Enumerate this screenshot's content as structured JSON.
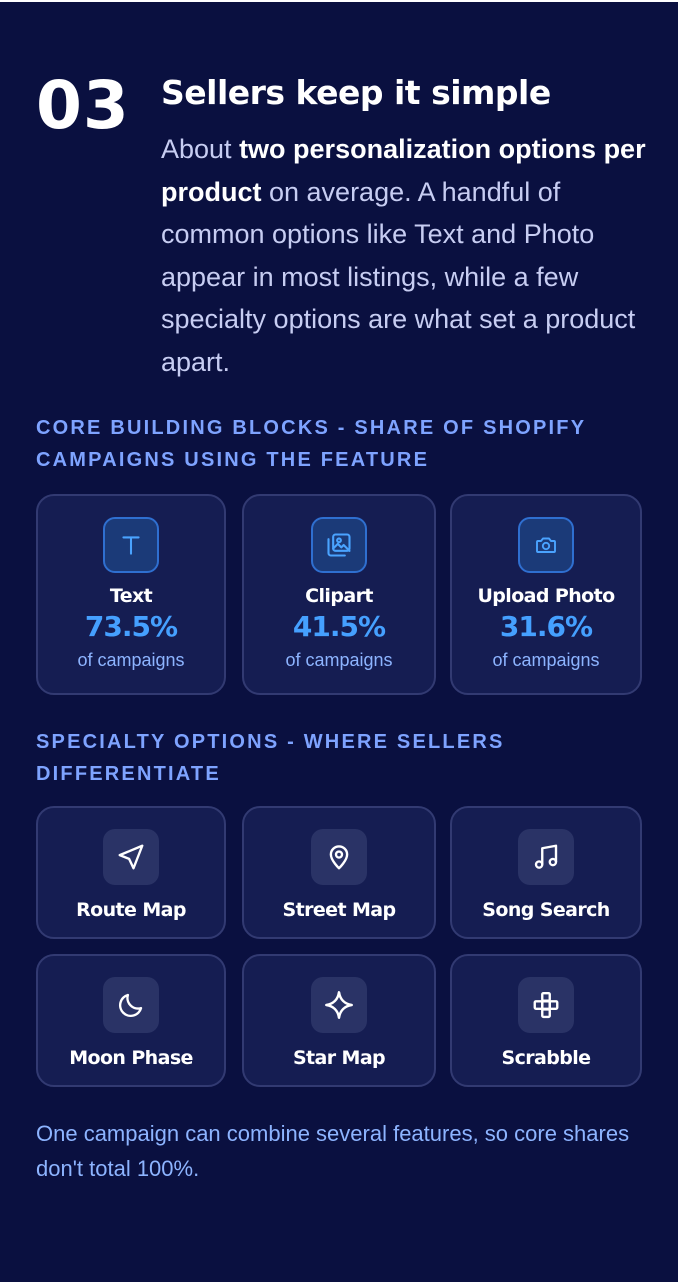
{
  "section": {
    "number": "03",
    "title": "Sellers keep it simple",
    "intro": {
      "lead": "About ",
      "bold": "two personalization options per product",
      "rest": " on average. A handful of common options like Text and Photo appear in most listings, while a few specialty options are what set a product apart."
    }
  },
  "core": {
    "label": "CORE BUILDING BLOCKS - SHARE OF SHOPIFY CAMPAIGNS USING THE FEATURE",
    "items": [
      {
        "name": "Text",
        "value": "73.5%",
        "unit": "of campaigns",
        "icon": "text-icon"
      },
      {
        "name": "Clipart",
        "value": "41.5%",
        "unit": "of campaigns",
        "icon": "image-gallery-icon"
      },
      {
        "name": "Upload Photo",
        "value": "31.6%",
        "unit": "of campaigns",
        "icon": "camera-icon"
      }
    ]
  },
  "specialty": {
    "label": "SPECIALTY OPTIONS - WHERE SELLERS DIFFERENTIATE",
    "items": [
      {
        "name": "Route Map",
        "icon": "navigation-arrow-icon"
      },
      {
        "name": "Street Map",
        "icon": "map-pin-icon"
      },
      {
        "name": "Song Search",
        "icon": "music-note-icon"
      },
      {
        "name": "Moon Phase",
        "icon": "moon-icon"
      },
      {
        "name": "Star Map",
        "icon": "sparkle-star-icon"
      },
      {
        "name": "Scrabble",
        "icon": "tiles-icon"
      }
    ]
  },
  "footnote": "One campaign can combine several features, so core shares don't total 100%.",
  "colors": {
    "background": "#0a1040",
    "card": "#151d52",
    "accent": "#45a0ff",
    "label": "#7ea3ff"
  }
}
